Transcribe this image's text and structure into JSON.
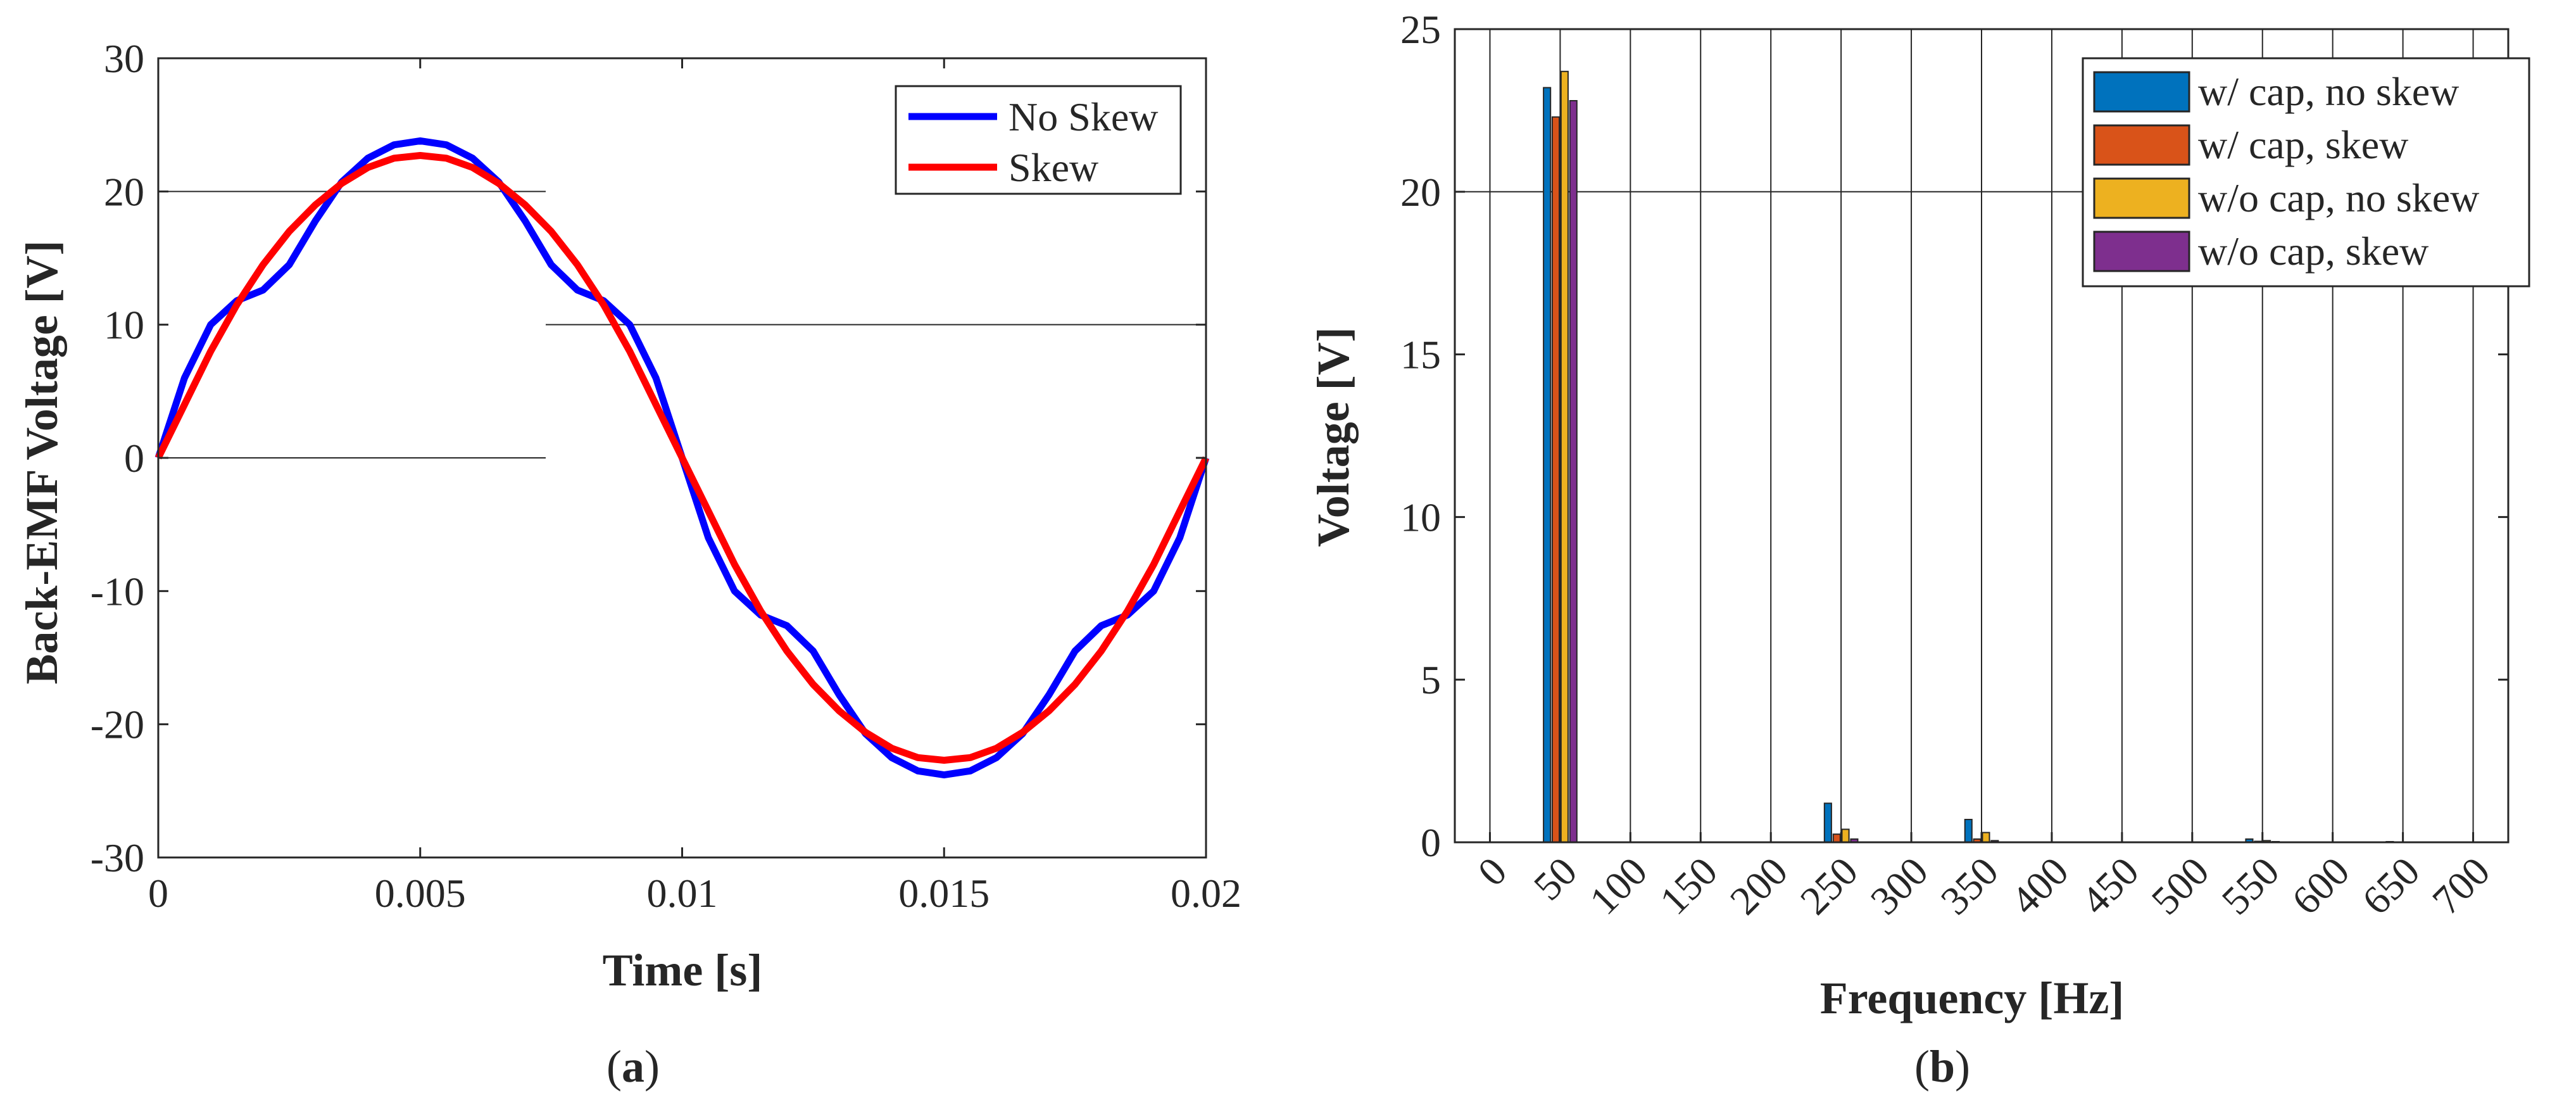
{
  "chart_data": [
    {
      "type": "line",
      "panel": "a",
      "caption_letter": "a",
      "xlabel": "Time [s]",
      "ylabel": "Back-EMF Voltage [V]",
      "xlim": [
        0,
        0.02
      ],
      "ylim": [
        -30,
        30
      ],
      "xticks": [
        0,
        0.005,
        0.01,
        0.015,
        0.02
      ],
      "xtick_labels": [
        "0",
        "0.005",
        "0.01",
        "0.015",
        "0.02"
      ],
      "yticks": [
        -30,
        -20,
        -10,
        0,
        10,
        20,
        30
      ],
      "ytick_labels": [
        "-30",
        "-20",
        "-10",
        "0",
        "10",
        "20",
        "30"
      ],
      "legend_position": "top-right",
      "series": [
        {
          "name": "No Skew",
          "color": "#0000ff",
          "x": [
            0,
            0.0005,
            0.001,
            0.0015,
            0.002,
            0.0025,
            0.003,
            0.0035,
            0.004,
            0.0045,
            0.005,
            0.0055,
            0.006,
            0.0065,
            0.007,
            0.0075,
            0.008,
            0.0085,
            0.009,
            0.0095,
            0.01,
            0.0105,
            0.011,
            0.0115,
            0.012,
            0.0125,
            0.013,
            0.0135,
            0.014,
            0.0145,
            0.015,
            0.0155,
            0.016,
            0.0165,
            0.017,
            0.0175,
            0.018,
            0.0185,
            0.019,
            0.0195,
            0.02
          ],
          "y": [
            0,
            6,
            10,
            11.8,
            12.6,
            14.5,
            17.8,
            20.7,
            22.5,
            23.5,
            23.8,
            23.5,
            22.5,
            20.7,
            17.8,
            14.5,
            12.6,
            11.8,
            10,
            6,
            0,
            -6,
            -10,
            -11.8,
            -12.6,
            -14.5,
            -17.8,
            -20.7,
            -22.5,
            -23.5,
            -23.8,
            -23.5,
            -22.5,
            -20.7,
            -17.8,
            -14.5,
            -12.6,
            -11.8,
            -10,
            -6,
            0
          ]
        },
        {
          "name": "Skew",
          "color": "#ff0000",
          "x": [
            0,
            0.0005,
            0.001,
            0.0015,
            0.002,
            0.0025,
            0.003,
            0.0035,
            0.004,
            0.0045,
            0.005,
            0.0055,
            0.006,
            0.0065,
            0.007,
            0.0075,
            0.008,
            0.0085,
            0.009,
            0.0095,
            0.01,
            0.0105,
            0.011,
            0.0115,
            0.012,
            0.0125,
            0.013,
            0.0135,
            0.014,
            0.0145,
            0.015,
            0.0155,
            0.016,
            0.0165,
            0.017,
            0.0175,
            0.018,
            0.0185,
            0.019,
            0.0195,
            0.02
          ],
          "y": [
            0,
            4,
            8,
            11.5,
            14.5,
            17,
            19,
            20.6,
            21.8,
            22.5,
            22.7,
            22.5,
            21.8,
            20.6,
            19,
            17,
            14.5,
            11.5,
            8,
            4,
            0,
            -4,
            -8,
            -11.5,
            -14.5,
            -17,
            -19,
            -20.6,
            -21.8,
            -22.5,
            -22.7,
            -22.5,
            -21.8,
            -20.6,
            -19,
            -17,
            -14.5,
            -11.5,
            -8,
            -4,
            0
          ]
        }
      ]
    },
    {
      "type": "bar",
      "panel": "b",
      "caption_letter": "b",
      "xlabel": "Frequency [Hz]",
      "ylabel": "Voltage [V]",
      "xlim": [
        -25,
        725
      ],
      "ylim": [
        0,
        25
      ],
      "xticks": [
        0,
        50,
        100,
        150,
        200,
        250,
        300,
        350,
        400,
        450,
        500,
        550,
        600,
        650,
        700
      ],
      "xtick_labels": [
        "0",
        "50",
        "100",
        "150",
        "200",
        "250",
        "300",
        "350",
        "400",
        "450",
        "500",
        "550",
        "600",
        "650",
        "700"
      ],
      "yticks": [
        0,
        5,
        10,
        15,
        20,
        25
      ],
      "ytick_labels": [
        "0",
        "5",
        "10",
        "15",
        "20",
        "25"
      ],
      "legend_position": "top-right",
      "categories": [
        50,
        250,
        350,
        550,
        650
      ],
      "series": [
        {
          "name": "w/ cap, no skew",
          "color": "#0072bd",
          "values": [
            23.2,
            1.2,
            0.7,
            0.1,
            0.02
          ]
        },
        {
          "name": "w/ cap, skew",
          "color": "#d95319",
          "values": [
            22.3,
            0.25,
            0.1,
            0.03,
            0.01
          ]
        },
        {
          "name": "w/o cap, no skew",
          "color": "#edb120",
          "values": [
            23.7,
            0.4,
            0.3,
            0.05,
            0.01
          ]
        },
        {
          "name": "w/o cap, skew",
          "color": "#7e2f8e",
          "values": [
            22.8,
            0.1,
            0.05,
            0.02,
            0.01
          ]
        }
      ]
    }
  ]
}
